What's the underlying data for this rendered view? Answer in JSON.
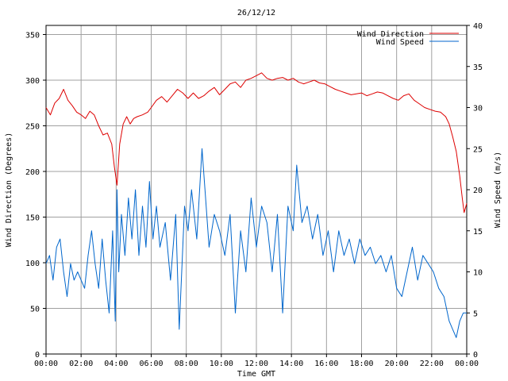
{
  "chart_data": {
    "type": "line",
    "title": "26/12/12",
    "xlabel": "Time GMT",
    "ylabel_left": "Wind Direction (Degrees)",
    "ylabel_right": "Wind Speed (m/s)",
    "x_tick_labels": [
      "00:00",
      "02:00",
      "04:00",
      "06:00",
      "08:00",
      "10:00",
      "12:00",
      "14:00",
      "16:00",
      "18:00",
      "20:00",
      "22:00",
      "00:00"
    ],
    "x_range_hours": [
      0,
      24
    ],
    "ylim_left": [
      0,
      360
    ],
    "ylim_right": [
      0,
      40
    ],
    "y_left_ticks": [
      0,
      50,
      100,
      150,
      200,
      250,
      300,
      350
    ],
    "y_right_ticks": [
      0,
      5,
      10,
      15,
      20,
      25,
      30,
      35,
      40
    ],
    "grid": true,
    "legend_position": "top-right",
    "series": [
      {
        "name": "Wind Direction",
        "axis": "left",
        "color": "#dd0000",
        "points": [
          [
            0.0,
            270
          ],
          [
            0.25,
            262
          ],
          [
            0.5,
            275
          ],
          [
            0.75,
            280
          ],
          [
            1.0,
            290
          ],
          [
            1.25,
            278
          ],
          [
            1.5,
            272
          ],
          [
            1.75,
            265
          ],
          [
            2.0,
            262
          ],
          [
            2.25,
            258
          ],
          [
            2.5,
            266
          ],
          [
            2.75,
            262
          ],
          [
            3.0,
            250
          ],
          [
            3.25,
            240
          ],
          [
            3.5,
            242
          ],
          [
            3.75,
            230
          ],
          [
            3.9,
            205
          ],
          [
            4.05,
            185
          ],
          [
            4.2,
            230
          ],
          [
            4.4,
            252
          ],
          [
            4.6,
            260
          ],
          [
            4.8,
            252
          ],
          [
            5.0,
            258
          ],
          [
            5.2,
            260
          ],
          [
            5.5,
            262
          ],
          [
            5.8,
            265
          ],
          [
            6.0,
            270
          ],
          [
            6.3,
            278
          ],
          [
            6.6,
            282
          ],
          [
            6.9,
            276
          ],
          [
            7.2,
            283
          ],
          [
            7.5,
            290
          ],
          [
            7.8,
            286
          ],
          [
            8.1,
            280
          ],
          [
            8.4,
            286
          ],
          [
            8.7,
            280
          ],
          [
            9.0,
            283
          ],
          [
            9.3,
            288
          ],
          [
            9.6,
            292
          ],
          [
            9.9,
            284
          ],
          [
            10.2,
            290
          ],
          [
            10.5,
            296
          ],
          [
            10.8,
            298
          ],
          [
            11.1,
            292
          ],
          [
            11.4,
            300
          ],
          [
            11.7,
            302
          ],
          [
            12.0,
            305
          ],
          [
            12.3,
            308
          ],
          [
            12.6,
            302
          ],
          [
            12.9,
            300
          ],
          [
            13.2,
            302
          ],
          [
            13.5,
            303
          ],
          [
            13.8,
            300
          ],
          [
            14.1,
            302
          ],
          [
            14.4,
            298
          ],
          [
            14.7,
            296
          ],
          [
            15.0,
            298
          ],
          [
            15.3,
            300
          ],
          [
            15.6,
            297
          ],
          [
            15.9,
            296
          ],
          [
            16.2,
            293
          ],
          [
            16.5,
            290
          ],
          [
            16.8,
            288
          ],
          [
            17.1,
            286
          ],
          [
            17.4,
            284
          ],
          [
            17.7,
            285
          ],
          [
            18.0,
            286
          ],
          [
            18.3,
            283
          ],
          [
            18.6,
            285
          ],
          [
            18.9,
            287
          ],
          [
            19.2,
            286
          ],
          [
            19.5,
            283
          ],
          [
            19.8,
            280
          ],
          [
            20.1,
            278
          ],
          [
            20.4,
            283
          ],
          [
            20.7,
            285
          ],
          [
            21.0,
            278
          ],
          [
            21.3,
            274
          ],
          [
            21.6,
            270
          ],
          [
            21.9,
            268
          ],
          [
            22.2,
            266
          ],
          [
            22.5,
            265
          ],
          [
            22.8,
            260
          ],
          [
            23.0,
            252
          ],
          [
            23.2,
            238
          ],
          [
            23.4,
            222
          ],
          [
            23.6,
            195
          ],
          [
            23.75,
            170
          ],
          [
            23.85,
            155
          ],
          [
            24.0,
            165
          ]
        ]
      },
      {
        "name": "Wind Speed",
        "axis": "right",
        "color": "#0066cc",
        "points": [
          [
            0.0,
            11
          ],
          [
            0.2,
            12
          ],
          [
            0.4,
            9
          ],
          [
            0.6,
            13
          ],
          [
            0.8,
            14
          ],
          [
            1.0,
            10
          ],
          [
            1.2,
            7
          ],
          [
            1.4,
            11
          ],
          [
            1.6,
            9
          ],
          [
            1.8,
            10
          ],
          [
            2.0,
            9
          ],
          [
            2.2,
            8
          ],
          [
            2.4,
            12
          ],
          [
            2.6,
            15
          ],
          [
            2.8,
            11
          ],
          [
            3.0,
            8
          ],
          [
            3.2,
            14
          ],
          [
            3.4,
            9
          ],
          [
            3.6,
            5
          ],
          [
            3.8,
            15
          ],
          [
            3.95,
            4
          ],
          [
            4.05,
            20
          ],
          [
            4.15,
            10
          ],
          [
            4.3,
            17
          ],
          [
            4.5,
            12
          ],
          [
            4.7,
            19
          ],
          [
            4.9,
            14
          ],
          [
            5.1,
            20
          ],
          [
            5.3,
            12
          ],
          [
            5.5,
            18
          ],
          [
            5.7,
            13
          ],
          [
            5.9,
            21
          ],
          [
            6.1,
            14
          ],
          [
            6.3,
            18
          ],
          [
            6.5,
            13
          ],
          [
            6.8,
            16
          ],
          [
            7.1,
            9
          ],
          [
            7.4,
            17
          ],
          [
            7.6,
            3
          ],
          [
            7.9,
            18
          ],
          [
            8.1,
            15
          ],
          [
            8.3,
            20
          ],
          [
            8.6,
            14
          ],
          [
            8.9,
            25
          ],
          [
            9.1,
            19
          ],
          [
            9.3,
            13
          ],
          [
            9.6,
            17
          ],
          [
            9.9,
            15
          ],
          [
            10.2,
            12
          ],
          [
            10.5,
            17
          ],
          [
            10.8,
            5
          ],
          [
            11.1,
            15
          ],
          [
            11.4,
            10
          ],
          [
            11.7,
            19
          ],
          [
            12.0,
            13
          ],
          [
            12.3,
            18
          ],
          [
            12.6,
            16
          ],
          [
            12.9,
            10
          ],
          [
            13.2,
            17
          ],
          [
            13.5,
            5
          ],
          [
            13.8,
            18
          ],
          [
            14.1,
            15
          ],
          [
            14.3,
            23
          ],
          [
            14.6,
            16
          ],
          [
            14.9,
            18
          ],
          [
            15.2,
            14
          ],
          [
            15.5,
            17
          ],
          [
            15.8,
            12
          ],
          [
            16.1,
            15
          ],
          [
            16.4,
            10
          ],
          [
            16.7,
            15
          ],
          [
            17.0,
            12
          ],
          [
            17.3,
            14
          ],
          [
            17.6,
            11
          ],
          [
            17.9,
            14
          ],
          [
            18.2,
            12
          ],
          [
            18.5,
            13
          ],
          [
            18.8,
            11
          ],
          [
            19.1,
            12
          ],
          [
            19.4,
            10
          ],
          [
            19.7,
            12
          ],
          [
            20.0,
            8
          ],
          [
            20.3,
            7
          ],
          [
            20.6,
            10
          ],
          [
            20.9,
            13
          ],
          [
            21.2,
            9
          ],
          [
            21.5,
            12
          ],
          [
            21.8,
            11
          ],
          [
            22.1,
            10
          ],
          [
            22.4,
            8
          ],
          [
            22.7,
            7
          ],
          [
            23.0,
            4
          ],
          [
            23.2,
            3
          ],
          [
            23.4,
            2
          ],
          [
            23.6,
            4
          ],
          [
            23.8,
            5
          ],
          [
            24.0,
            5
          ]
        ]
      }
    ]
  }
}
